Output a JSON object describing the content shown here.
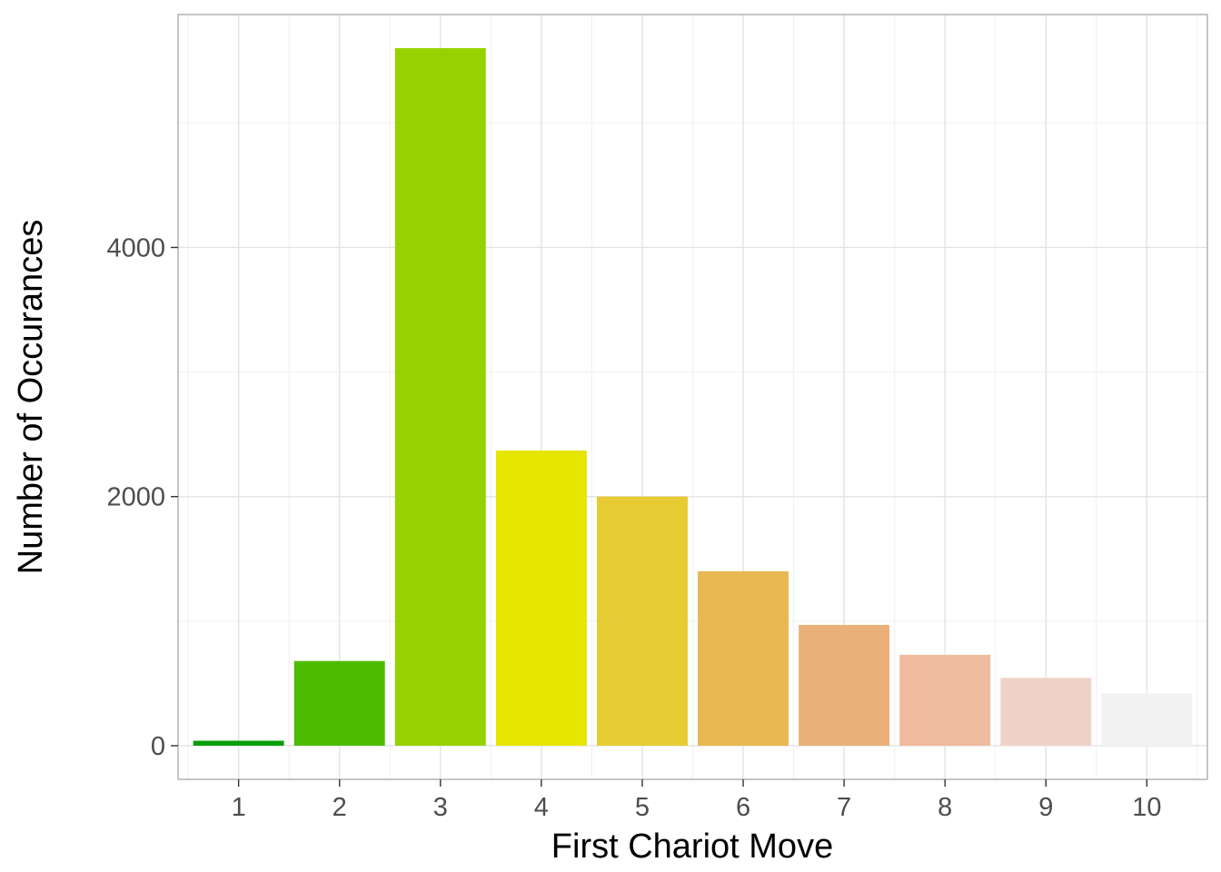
{
  "chart_data": {
    "type": "bar",
    "title": "",
    "xlabel": "First Chariot Move",
    "ylabel": "Number of Occurances",
    "categories": [
      "1",
      "2",
      "3",
      "4",
      "5",
      "6",
      "7",
      "8",
      "9",
      "10"
    ],
    "values": [
      40,
      680,
      5600,
      2370,
      2000,
      1400,
      970,
      730,
      545,
      420
    ],
    "bar_colors": [
      "#0a9e0a",
      "#4dbb00",
      "#97d200",
      "#e6e600",
      "#e6cb33",
      "#e9b852",
      "#ebb079",
      "#efbb9e",
      "#f0d3c7",
      "#f2f2f2"
    ],
    "y_ticks": [
      0,
      2000,
      4000
    ],
    "y_tick_labels": [
      "0",
      "2000",
      "4000"
    ],
    "ylim": [
      -270,
      5870
    ],
    "grid": true,
    "legend": "none"
  }
}
